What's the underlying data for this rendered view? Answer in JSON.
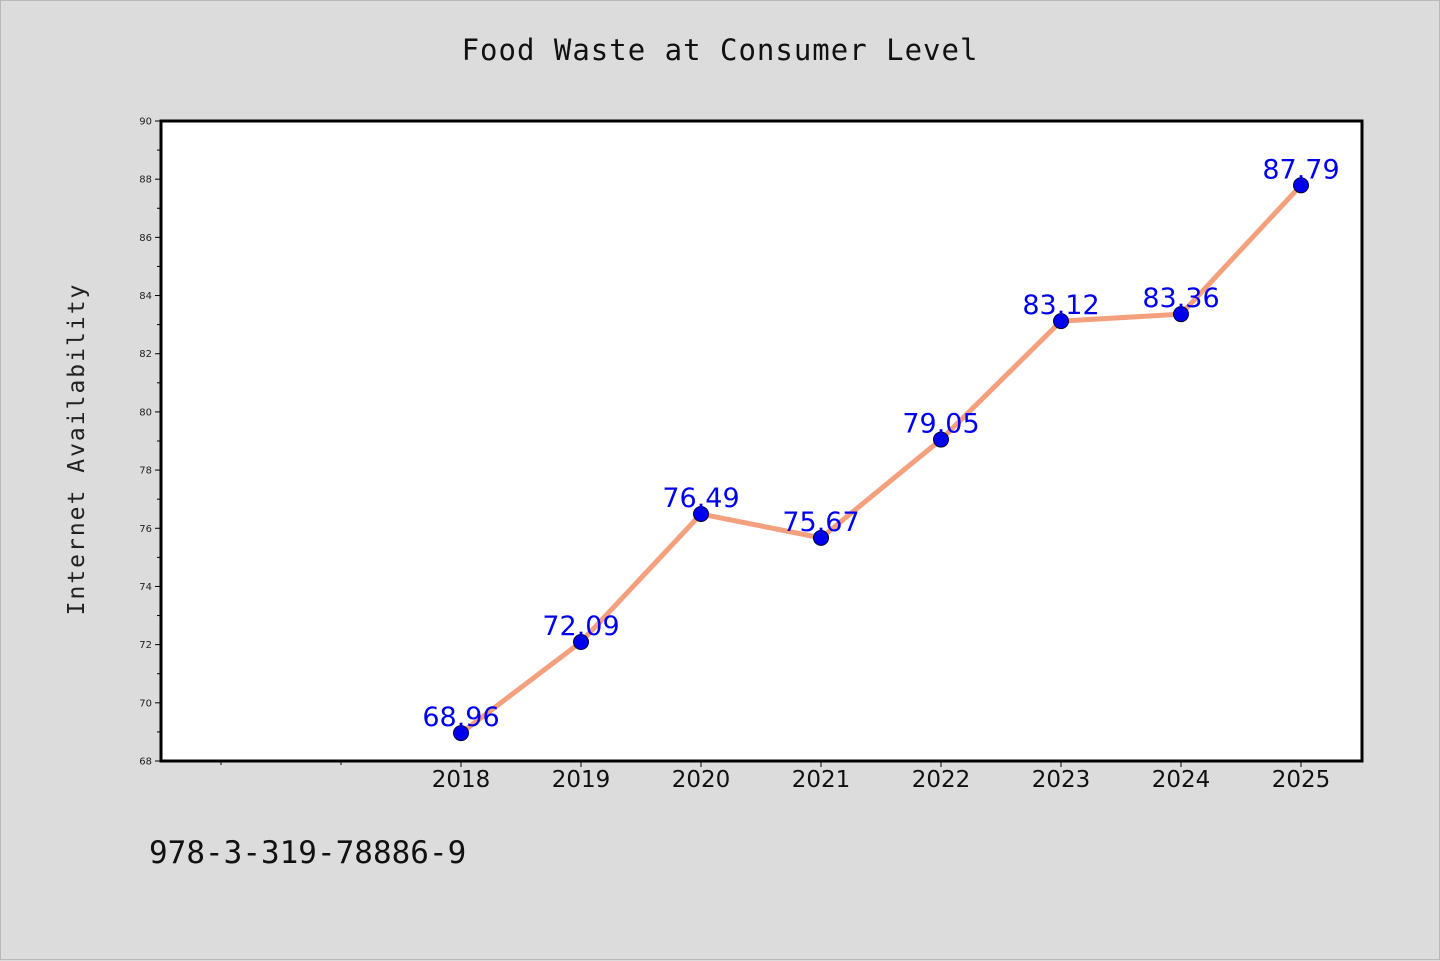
{
  "footer": {
    "code": "978-3-319-78886-9"
  },
  "chart_data": {
    "type": "line",
    "title": "Food Waste at Consumer Level",
    "xlabel": "",
    "ylabel": "Internet Availability",
    "categories": [
      "2018",
      "2019",
      "2020",
      "2021",
      "2022",
      "2023",
      "2024",
      "2025"
    ],
    "series": [
      {
        "values": [
          68.96,
          72.09,
          76.49,
          75.67,
          79.05,
          83.12,
          83.36,
          87.79
        ]
      }
    ],
    "data_labels": [
      "68.96",
      "72.09",
      "76.49",
      "75.67",
      "79.05",
      "83.12",
      "83.36",
      "87.79"
    ],
    "ylim": [
      68,
      90
    ],
    "yticks": [
      "68",
      "70",
      "72",
      "74",
      "76",
      "78",
      "80",
      "82",
      "84",
      "86",
      "88",
      "90"
    ],
    "grid": false,
    "line_color": "#f4a07c",
    "marker_color": "#0000ee",
    "label_color": "#0000ee"
  }
}
